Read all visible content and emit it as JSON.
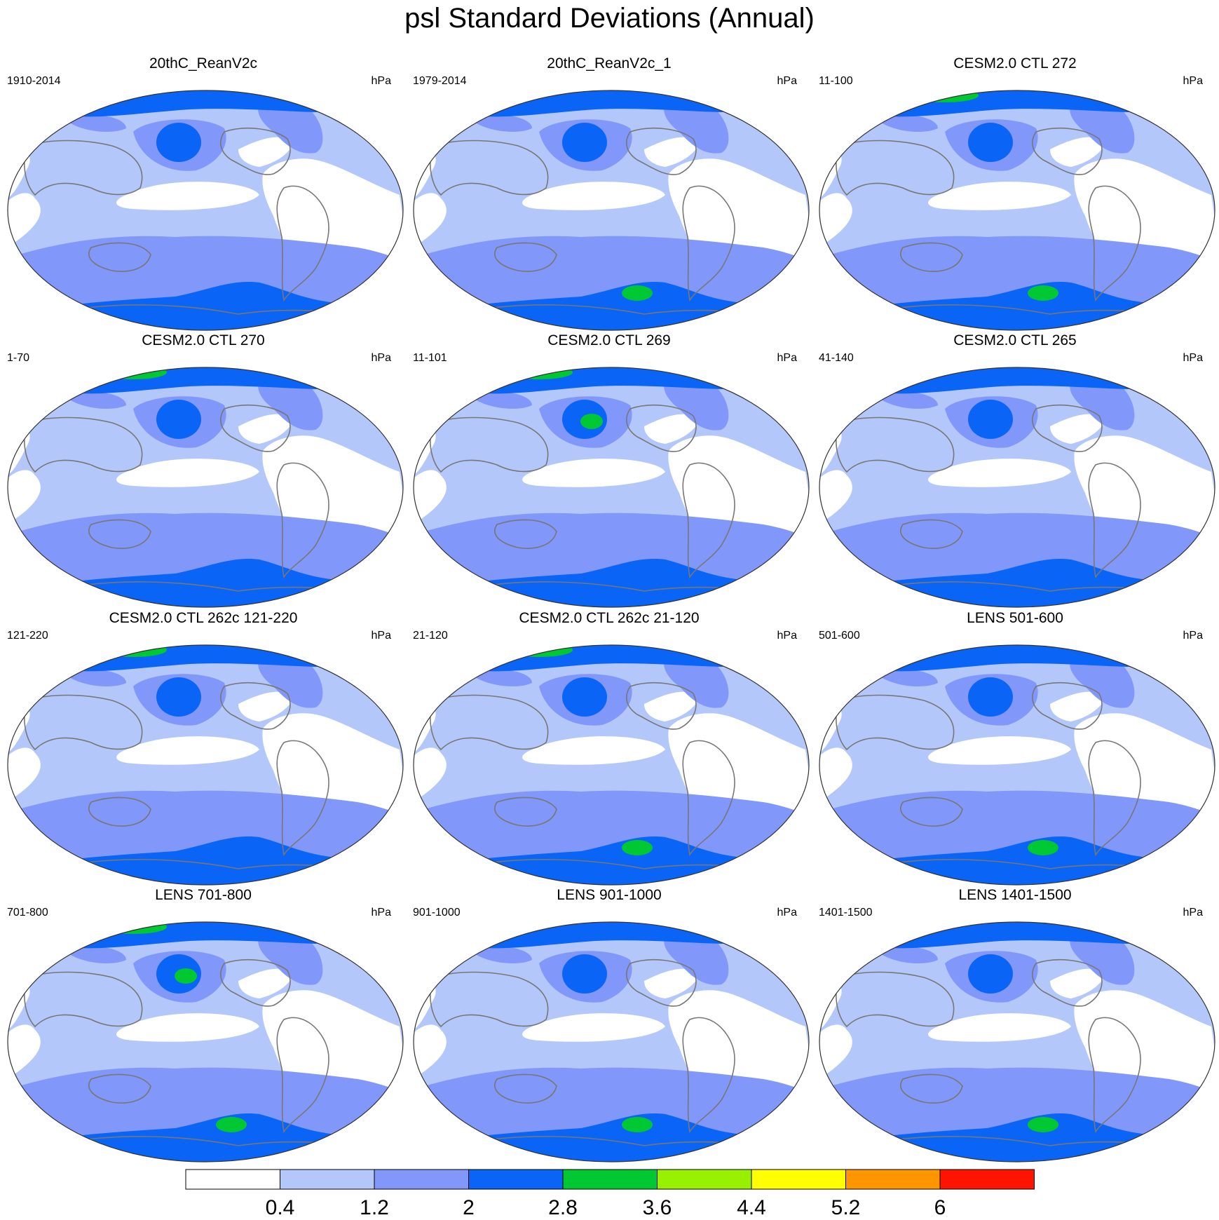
{
  "title": "psl Standard Deviations (Annual)",
  "colors": {
    "levels": [
      "#ffffff",
      "#b4c7fa",
      "#8297fa",
      "#0a64f5",
      "#00c832",
      "#96f000",
      "#ffff00",
      "#ff9600",
      "#ff1400"
    ],
    "coastline": "#777777",
    "map_outline": "#333333"
  },
  "colorbar": {
    "labels": [
      "0.4",
      "1.2",
      "2",
      "2.8",
      "3.6",
      "4.4",
      "5.2",
      "6"
    ]
  },
  "panels": [
    {
      "title": "20thC_ReanV2c",
      "left": "1910-2014",
      "right": "hPa",
      "green": []
    },
    {
      "title": "20thC_ReanV2c_1",
      "left": "1979-2014",
      "right": "hPa",
      "green": [
        "south"
      ]
    },
    {
      "title": "CESM2.0 CTL 272",
      "left": "11-100",
      "right": "hPa",
      "green": [
        "arctic",
        "south"
      ]
    },
    {
      "title": "CESM2.0 CTL 270",
      "left": "1-70",
      "right": "hPa",
      "green": [
        "arctic"
      ]
    },
    {
      "title": "CESM2.0 CTL 269",
      "left": "11-101",
      "right": "hPa",
      "green": [
        "arctic",
        "aleutian"
      ]
    },
    {
      "title": "CESM2.0 CTL 265",
      "left": "41-140",
      "right": "hPa",
      "green": []
    },
    {
      "title": "CESM2.0 CTL 262c 121-220",
      "left": "121-220",
      "right": "hPa",
      "green": [
        "arctic"
      ]
    },
    {
      "title": "CESM2.0 CTL 262c 21-120",
      "left": "21-120",
      "right": "hPa",
      "green": [
        "arctic",
        "south"
      ]
    },
    {
      "title": "LENS 501-600",
      "left": "501-600",
      "right": "hPa",
      "green": [
        "south"
      ]
    },
    {
      "title": "LENS 701-800",
      "left": "701-800",
      "right": "hPa",
      "green": [
        "arctic",
        "aleutian",
        "south"
      ]
    },
    {
      "title": "LENS 901-1000",
      "left": "901-1000",
      "right": "hPa",
      "green": [
        "south"
      ]
    },
    {
      "title": "LENS 1401-1500",
      "left": "1401-1500",
      "right": "hPa",
      "green": [
        "south"
      ]
    }
  ]
}
